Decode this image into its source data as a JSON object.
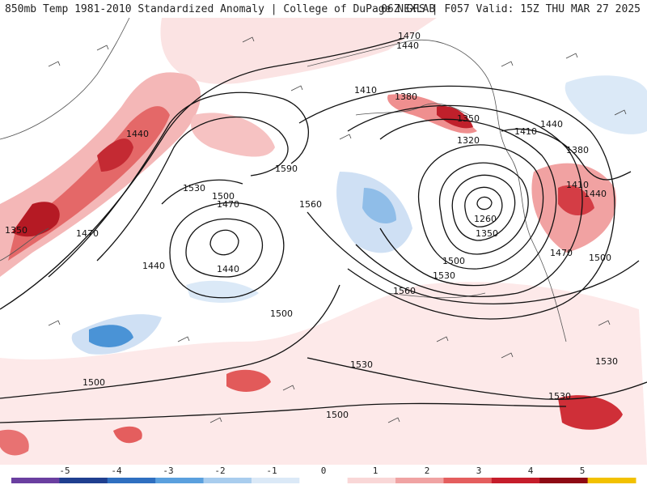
{
  "header": {
    "title_left": "850mb Temp 1981-2010 Standardized Anomaly | College of DuPage NEXLAB",
    "title_right": "06Z GFS | F057 Valid: 15Z THU MAR 27 2025"
  },
  "colorbar": {
    "ticks": [
      "-5",
      "-4",
      "-3",
      "-2",
      "-1",
      "0",
      "1",
      "2",
      "3",
      "4",
      "5"
    ],
    "colors": [
      "#6a3fa0",
      "#1f3f8f",
      "#2f6fc0",
      "#5aa0de",
      "#a9cdee",
      "#dbe9f7",
      "#ffffff",
      "#f9d7d7",
      "#f0a3a3",
      "#e45e5e",
      "#c51d2b",
      "#8e0a14",
      "#f2c100"
    ]
  },
  "contour_labels": [
    {
      "text": "1470"
    },
    {
      "text": "1440"
    },
    {
      "text": "1410"
    },
    {
      "text": "1380"
    },
    {
      "text": "1350"
    },
    {
      "text": "1320"
    },
    {
      "text": "1410"
    },
    {
      "text": "1440"
    },
    {
      "text": "1380"
    },
    {
      "text": "1410"
    },
    {
      "text": "1440"
    },
    {
      "text": "1260"
    },
    {
      "text": "1350"
    },
    {
      "text": "1500"
    },
    {
      "text": "1530"
    },
    {
      "text": "1560"
    },
    {
      "text": "1470"
    },
    {
      "text": "1500"
    },
    {
      "text": "1530"
    },
    {
      "text": "1530"
    },
    {
      "text": "1530"
    },
    {
      "text": "1590"
    },
    {
      "text": "1530"
    },
    {
      "text": "1500"
    },
    {
      "text": "1470"
    },
    {
      "text": "1560"
    },
    {
      "text": "1440"
    },
    {
      "text": "1440"
    },
    {
      "text": "1440"
    },
    {
      "text": "1470"
    },
    {
      "text": "1350"
    },
    {
      "text": "1500"
    },
    {
      "text": "1500"
    },
    {
      "text": "1500"
    }
  ]
}
